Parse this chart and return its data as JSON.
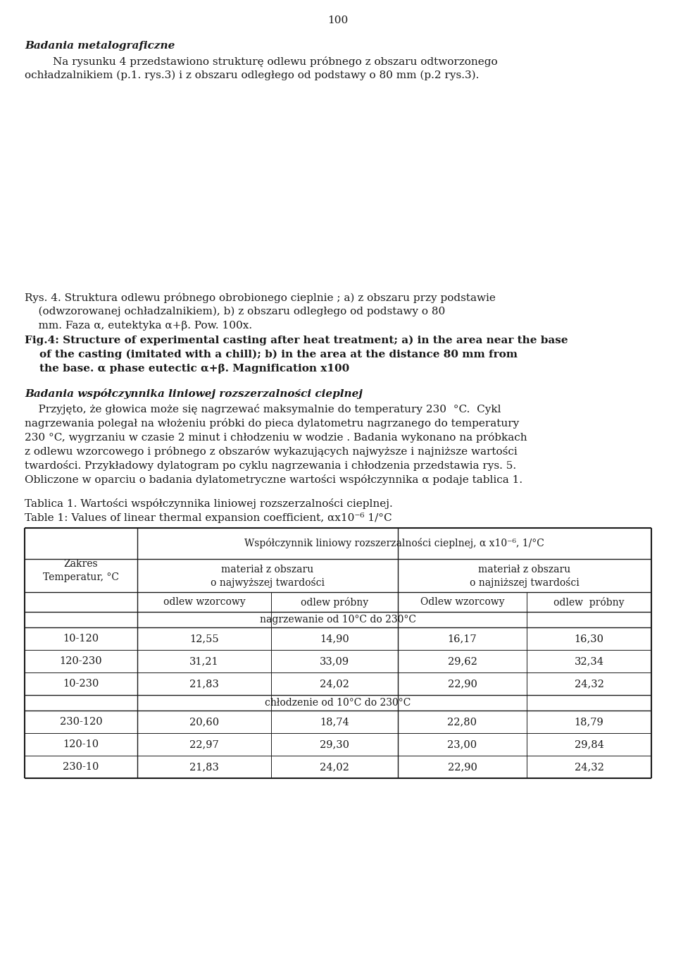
{
  "page_number": "100",
  "bg_color": "#ffffff",
  "text_color": "#1a1a1a",
  "section1_italic_bold": "Badania metalograficzne",
  "caption_pl_line1": "Rys. 4. Struktura odlewu próbnego obrobionego cieplnie ; a) z obszaru przy podstawie",
  "caption_pl_line2": "    (odwzorowanej ochładzalnikiem), b) z obszaru odległego od podstawy o 80",
  "caption_pl_line3": "    mm. Faza α, eutektyka α+β. Pow. 100x.",
  "caption_en_line1": "Fig.4: Structure of experimental casting after heat treatment; a) in the area near the base",
  "caption_en_line2": "    of the casting (imitated with a chill); b) in the area at the distance 80 mm from",
  "caption_en_line3": "    the base. α phase eutectic α+β. Magnification x100",
  "section2_italic_bold": "Badania współczynnika liniowej rozszerzalności cieplnej",
  "table_title1": "Tablica 1. Wartości współczynnika liniowej rozszerzalności cieplnej.",
  "table_title2": "Table 1: Values of linear thermal expansion coefficient, αx10⁻⁶ 1/°C",
  "col_header_main": "Współczynnik liniowy rozszerzalności cieplnej, α x10⁻⁶, 1/°C",
  "row_header_col": "Zakres\nTemperatur, °C",
  "separator_row1": "nagrzewanie od 10°C do 230°C",
  "separator_row2": "chłodzenie od 10°C do 230°C",
  "data_rows": [
    [
      "10-120",
      "12,55",
      "14,90",
      "16,17",
      "16,30"
    ],
    [
      "120-230",
      "31,21",
      "33,09",
      "29,62",
      "32,34"
    ],
    [
      "10-230",
      "21,83",
      "24,02",
      "22,90",
      "24,32"
    ],
    [
      "230-120",
      "20,60",
      "18,74",
      "22,80",
      "18,79"
    ],
    [
      "120-10",
      "22,97",
      "29,30",
      "23,00",
      "29,84"
    ],
    [
      "230-10",
      "21,83",
      "24,02",
      "22,90",
      "24,32"
    ]
  ]
}
